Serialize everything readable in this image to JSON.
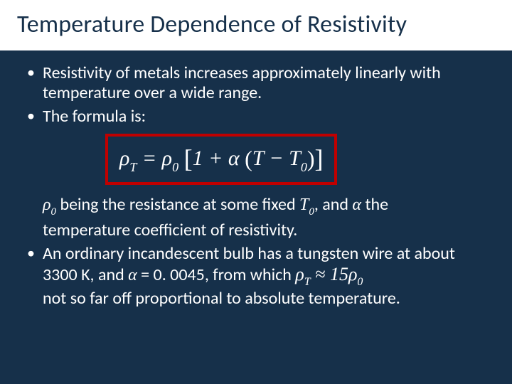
{
  "slide": {
    "background_color": "#16304a",
    "title_bg": "#ffffff",
    "title_color": "#16304a",
    "text_color": "#ffffff",
    "accent_box_color": "#c00000",
    "title": "Temperature Dependence of Resistivity",
    "bullet1": "Resistivity of metals increases approximately linearly with temperature over a wide range.",
    "bullet2": "The formula is:",
    "formula": {
      "lhs_sym": "ρ",
      "lhs_sub": "T",
      "eq": " = ",
      "rho0_sym": "ρ",
      "rho0_sub": "0",
      "open_br": "[",
      "one_plus": "1 + ",
      "alpha": "α",
      "open_p": "(",
      "T": "T",
      "minus": " − ",
      "T0_sym": "T",
      "T0_sub": "0",
      "close_p": ")",
      "close_br": "]"
    },
    "cont1_a": " being the resistance at some fixed ",
    "cont1_b": ", and ",
    "cont1_c": " the",
    "cont2": "temperature coefficient of resistivity.",
    "bullet3a": "An ordinary incandescent bulb has a tungsten wire at about 3300 K, and ",
    "bullet3_alpha": "α",
    "bullet3b": " = 0. 0045, from which  ",
    "bullet3_expr": {
      "rhoT_sym": "ρ",
      "rhoT_sub": "T",
      "approx": " ≈ ",
      "fifteen": "15",
      "rho0_sym": "ρ",
      "rho0_sub": "0"
    },
    "bullet3c": "not so far off proportional to absolute temperature.",
    "symbols": {
      "rho0_sym": "ρ",
      "rho0_sub": "0",
      "T0_sym": "T",
      "T0_sub": "0",
      "alpha": "α"
    }
  }
}
